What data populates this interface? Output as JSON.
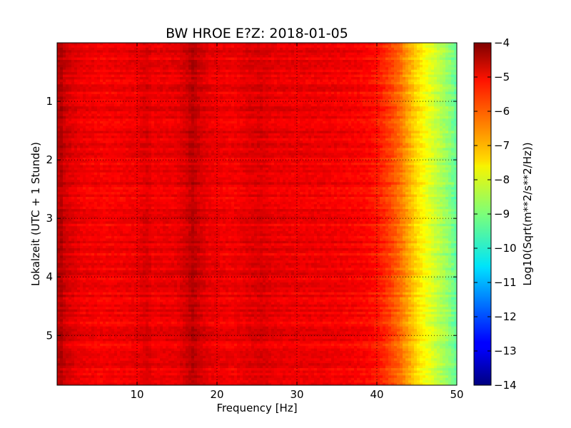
{
  "chart_data": {
    "type": "heatmap",
    "title": "BW HROE E?Z: 2018-01-05",
    "xlabel": "Frequency [Hz]",
    "ylabel": "Lokalzeit (UTC + 1 Stunde)",
    "xlim": [
      0,
      50
    ],
    "ylim": [
      5.85,
      0
    ],
    "x_ticks": [
      10,
      20,
      30,
      40,
      50
    ],
    "y_ticks": [
      1,
      2,
      3,
      4,
      5
    ],
    "grid": true,
    "grid_style": "dotted",
    "colormap": "jet",
    "colorbar": {
      "label": "Log10(Sqrt(m**2/s**2/Hz))",
      "range": [
        -14,
        -4
      ],
      "ticks": [
        -4,
        -5,
        -6,
        -7,
        -8,
        -9,
        -10,
        -11,
        -12,
        -13,
        -14
      ],
      "position": "right"
    },
    "frequency_profile": {
      "frequency_hz": [
        0,
        0.5,
        1,
        3,
        6,
        10,
        11.3,
        12,
        15,
        16.3,
        17,
        17.7,
        19,
        22,
        24.5,
        25.5,
        27,
        30,
        33,
        35,
        37,
        39,
        40,
        41,
        42,
        43,
        44,
        45,
        46,
        47,
        48,
        49,
        50
      ],
      "log10_amplitude": [
        -4.6,
        -4.5,
        -4.8,
        -5.1,
        -5.2,
        -5.1,
        -4.9,
        -5.1,
        -5.05,
        -4.8,
        -4.55,
        -4.8,
        -5.05,
        -5.15,
        -4.95,
        -4.9,
        -5.05,
        -5.1,
        -5.1,
        -5.15,
        -5.2,
        -5.3,
        -5.45,
        -5.7,
        -6.0,
        -6.4,
        -6.9,
        -7.4,
        -7.8,
        -8.15,
        -8.5,
        -8.85,
        -9.3
      ]
    }
  }
}
